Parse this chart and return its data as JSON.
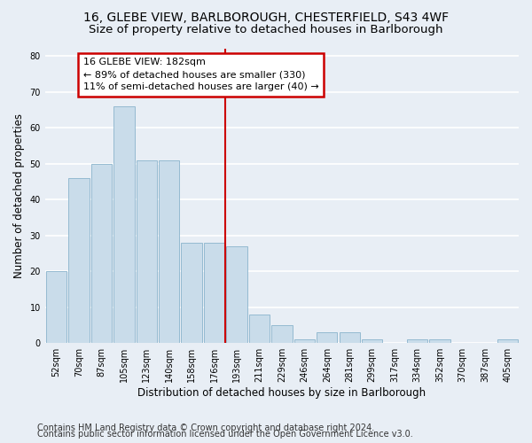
{
  "title1": "16, GLEBE VIEW, BARLBOROUGH, CHESTERFIELD, S43 4WF",
  "title2": "Size of property relative to detached houses in Barlborough",
  "xlabel": "Distribution of detached houses by size in Barlborough",
  "ylabel": "Number of detached properties",
  "bar_labels": [
    "52sqm",
    "70sqm",
    "87sqm",
    "105sqm",
    "123sqm",
    "140sqm",
    "158sqm",
    "176sqm",
    "193sqm",
    "211sqm",
    "229sqm",
    "246sqm",
    "264sqm",
    "281sqm",
    "299sqm",
    "317sqm",
    "334sqm",
    "352sqm",
    "370sqm",
    "387sqm",
    "405sqm"
  ],
  "bar_values": [
    20,
    46,
    50,
    66,
    51,
    51,
    28,
    28,
    27,
    8,
    5,
    1,
    3,
    3,
    1,
    0,
    1,
    1,
    0,
    0,
    1
  ],
  "bar_color": "#c9dcea",
  "bar_edge_color": "#8ab4cc",
  "vline_x_index": 7.5,
  "annotation_text": "16 GLEBE VIEW: 182sqm\n← 89% of detached houses are smaller (330)\n11% of semi-detached houses are larger (40) →",
  "annotation_box_color": "white",
  "annotation_box_edge_color": "#cc0000",
  "vline_color": "#cc0000",
  "ylim": [
    0,
    82
  ],
  "yticks": [
    0,
    10,
    20,
    30,
    40,
    50,
    60,
    70,
    80
  ],
  "footer1": "Contains HM Land Registry data © Crown copyright and database right 2024.",
  "footer2": "Contains public sector information licensed under the Open Government Licence v3.0.",
  "bg_color": "#e8eef5",
  "plot_bg_color": "#e8eef5",
  "title_fontsize": 10,
  "subtitle_fontsize": 9.5,
  "tick_fontsize": 7,
  "label_fontsize": 8.5,
  "annotation_fontsize": 8,
  "footer_fontsize": 7
}
